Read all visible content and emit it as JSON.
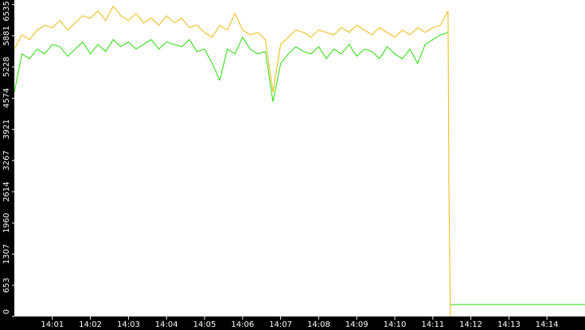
{
  "chart_data": {
    "type": "line",
    "x": [
      0,
      0.2,
      0.4,
      0.6,
      0.8,
      1,
      1.2,
      1.4,
      1.6,
      1.8,
      2,
      2.2,
      2.4,
      2.6,
      2.8,
      3,
      3.2,
      3.4,
      3.6,
      3.8,
      4,
      4.2,
      4.4,
      4.6,
      4.8,
      5,
      5.2,
      5.4,
      5.6,
      5.8,
      6,
      6.2,
      6.4,
      6.6,
      6.8,
      7,
      7.2,
      7.4,
      7.6,
      7.8,
      8,
      8.2,
      8.4,
      8.6,
      8.8,
      9,
      9.2,
      9.4,
      9.6,
      9.8,
      10,
      10.2,
      10.4,
      10.6,
      10.8,
      11,
      11.2,
      11.4,
      11.42,
      11.46,
      15
    ],
    "series": [
      {
        "color": "#f2b705",
        "values": [
          5600,
          5900,
          5800,
          6000,
          6100,
          6050,
          6200,
          6000,
          6150,
          6300,
          6250,
          6400,
          6200,
          6500,
          6300,
          6200,
          6350,
          6150,
          6250,
          6100,
          6300,
          6150,
          6250,
          6050,
          6100,
          5950,
          5850,
          6100,
          6000,
          6350,
          6000,
          5900,
          5950,
          5800,
          4700,
          5700,
          5850,
          6000,
          5950,
          5850,
          6000,
          5950,
          5900,
          6050,
          5950,
          6100,
          6000,
          5900,
          6050,
          5950,
          5850,
          6000,
          5900,
          6050,
          5950,
          6050,
          6100,
          6400,
          2900,
          0,
          null
        ]
      },
      {
        "color": "#22dd00",
        "values": [
          4700,
          5500,
          5400,
          5600,
          5500,
          5700,
          5650,
          5450,
          5600,
          5750,
          5500,
          5700,
          5550,
          5800,
          5650,
          5750,
          5600,
          5700,
          5800,
          5600,
          5750,
          5700,
          5650,
          5800,
          5550,
          5600,
          5300,
          4950,
          5600,
          5500,
          5850,
          5600,
          5500,
          5550,
          4500,
          5300,
          5500,
          5650,
          5550,
          5500,
          5650,
          5400,
          5600,
          5500,
          5700,
          5450,
          5600,
          5550,
          5400,
          5650,
          5500,
          5400,
          5600,
          5300,
          5700,
          5800,
          5900,
          5950,
          null,
          250,
          250
        ]
      }
    ],
    "xlim": [
      0,
      15
    ],
    "xticks": [
      {
        "value": 1,
        "label": "14:01"
      },
      {
        "value": 2,
        "label": "14:02"
      },
      {
        "value": 3,
        "label": "14:03"
      },
      {
        "value": 4,
        "label": "14:04"
      },
      {
        "value": 5,
        "label": "14:05"
      },
      {
        "value": 6,
        "label": "14:06"
      },
      {
        "value": 7,
        "label": "14:07"
      },
      {
        "value": 8,
        "label": "14:08"
      },
      {
        "value": 9,
        "label": "14:09"
      },
      {
        "value": 10,
        "label": "14:10"
      },
      {
        "value": 11,
        "label": "14:11"
      },
      {
        "value": 12,
        "label": "14:12"
      },
      {
        "value": 13,
        "label": "14:13"
      },
      {
        "value": 14,
        "label": "14:14"
      }
    ],
    "ylim": [
      0,
      6630
    ],
    "yticks": [
      0,
      653,
      1307,
      1960,
      2614,
      3267,
      3921,
      4574,
      5228,
      5881,
      6535
    ]
  }
}
